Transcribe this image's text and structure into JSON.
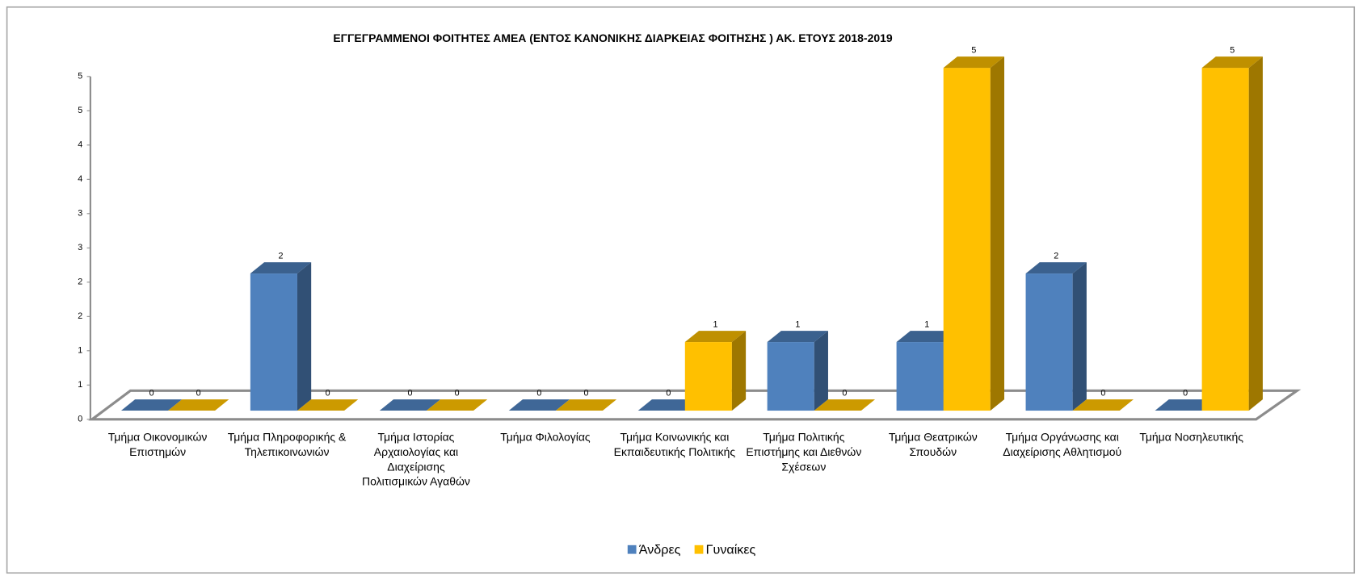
{
  "chart_data": {
    "type": "bar3d",
    "title": "ΕΓΓΕΓΡΑΜΜΕΝΟΙ ΦΟΙΤΗΤΕΣ ΑΜΕΑ (ΕΝΤΟΣ ΚΑΝΟΝΙΚΗΣ ΔΙΑΡΚΕΙΑΣ ΦΟΙΤΗΣΗΣ ) ΑΚ. ΕΤΟΥΣ 2018-2019",
    "categories": [
      "Τμήμα Οικονομικών Επιστημών",
      "Τμήμα Πληροφορικής & Τηλεπικοινωνιών",
      "Τμήμα Ιστορίας Αρχαιολογίας και Διαχείρισης Πολιτισμικών Αγαθών",
      "Τμήμα Φιλολογίας",
      "Τμήμα Κοινωνικής και Εκπαιδευτικής Πολιτικής",
      "Τμήμα Πολιτικής Επιστήμης και Διεθνών Σχέσεων",
      "Τμήμα Θεατρικών Σπουδών",
      "Τμήμα Οργάνωσης και Διαχείρισης Αθλητισμού",
      "Τμήμα Νοσηλευτικής"
    ],
    "series": [
      {
        "name": "Άνδρες",
        "color": "#4f81bd",
        "values": [
          0,
          2,
          0,
          0,
          0,
          1,
          1,
          2,
          0
        ]
      },
      {
        "name": "Γυναίκες",
        "color": "#ffc000",
        "values": [
          0,
          0,
          0,
          0,
          1,
          0,
          5,
          0,
          5
        ]
      }
    ],
    "ylim": [
      0,
      5
    ],
    "yticks": [
      0,
      {
        "value": 0.5,
        "label": "1"
      },
      1,
      {
        "value": 1.5,
        "label": "2"
      },
      2,
      {
        "value": 2.5,
        "label": "3"
      },
      3,
      {
        "value": 3.5,
        "label": "4"
      },
      4,
      {
        "value": 4.5,
        "label": "5"
      },
      5
    ],
    "grid": false,
    "legend": "bottom"
  }
}
